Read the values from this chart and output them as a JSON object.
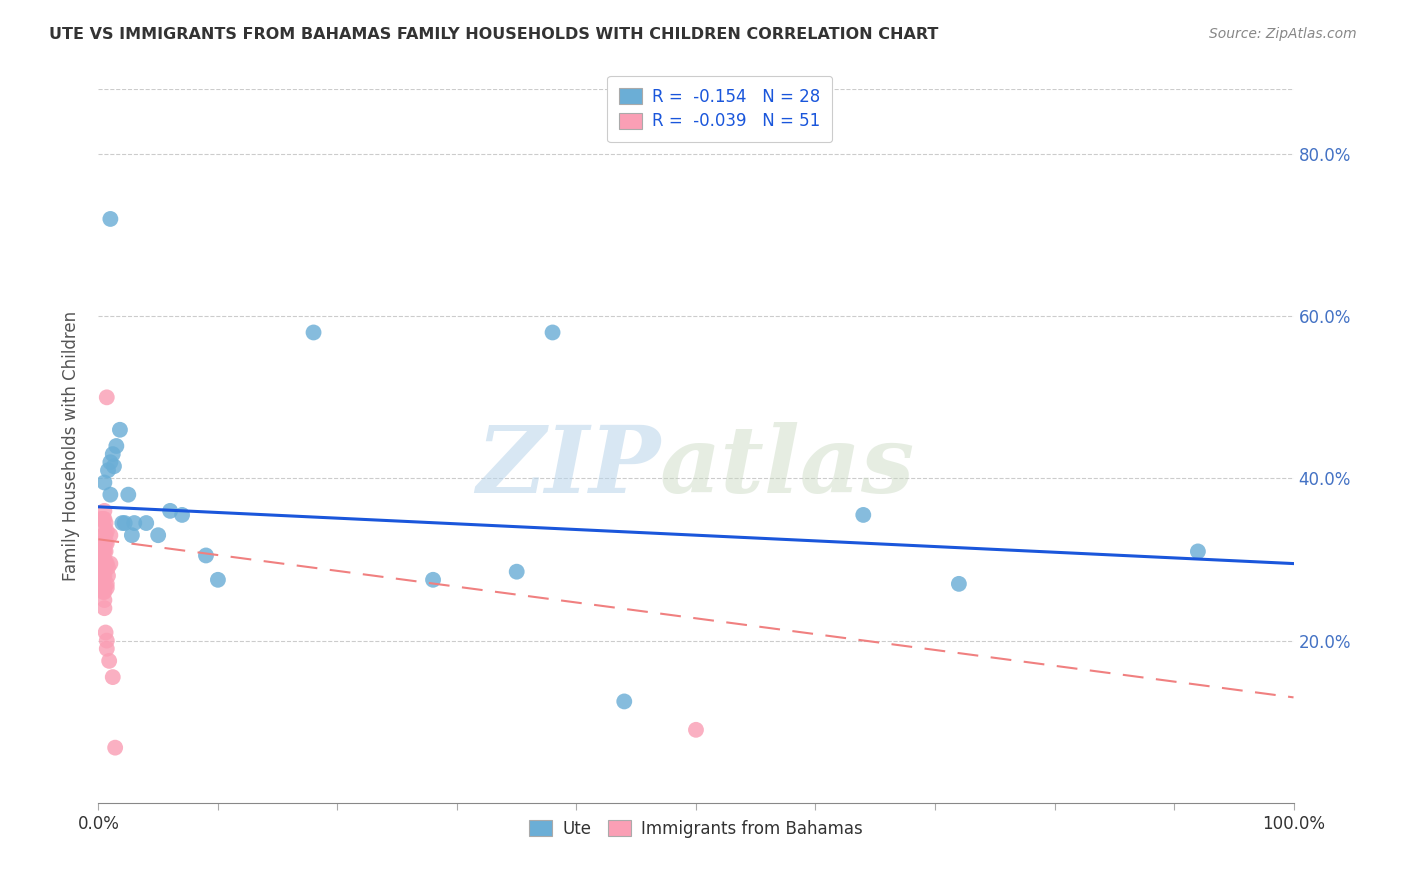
{
  "title": "UTE VS IMMIGRANTS FROM BAHAMAS FAMILY HOUSEHOLDS WITH CHILDREN CORRELATION CHART",
  "source": "Source: ZipAtlas.com",
  "ylabel": "Family Households with Children",
  "legend_label_blue": "Ute",
  "legend_label_pink": "Immigrants from Bahamas",
  "R_blue": -0.154,
  "N_blue": 28,
  "R_pink": -0.039,
  "N_pink": 51,
  "xlim": [
    0.0,
    1.0
  ],
  "ylim": [
    0.0,
    0.88
  ],
  "xtick_vals": [
    0.0,
    0.1,
    0.2,
    0.3,
    0.4,
    0.5,
    0.6,
    0.7,
    0.8,
    0.9,
    1.0
  ],
  "ytick_vals": [
    0.0,
    0.2,
    0.4,
    0.6,
    0.8
  ],
  "ytick_labels": [
    "",
    "20.0%",
    "40.0%",
    "60.0%",
    "80.0%"
  ],
  "blue_color": "#6baed6",
  "pink_color": "#fa9fb5",
  "line_blue_color": "#1a56db",
  "line_pink_color": "#f08080",
  "watermark_zip": "ZIP",
  "watermark_atlas": "atlas",
  "blue_regression": [
    0.0,
    1.0,
    0.365,
    0.295
  ],
  "pink_regression": [
    0.0,
    1.0,
    0.325,
    0.13
  ],
  "blue_dots": [
    [
      0.01,
      0.72
    ],
    [
      0.005,
      0.395
    ],
    [
      0.01,
      0.42
    ],
    [
      0.012,
      0.43
    ],
    [
      0.015,
      0.44
    ],
    [
      0.013,
      0.415
    ],
    [
      0.008,
      0.41
    ],
    [
      0.01,
      0.38
    ],
    [
      0.018,
      0.46
    ],
    [
      0.02,
      0.345
    ],
    [
      0.022,
      0.345
    ],
    [
      0.025,
      0.38
    ],
    [
      0.03,
      0.345
    ],
    [
      0.028,
      0.33
    ],
    [
      0.04,
      0.345
    ],
    [
      0.05,
      0.33
    ],
    [
      0.06,
      0.36
    ],
    [
      0.07,
      0.355
    ],
    [
      0.09,
      0.305
    ],
    [
      0.1,
      0.275
    ],
    [
      0.18,
      0.58
    ],
    [
      0.28,
      0.275
    ],
    [
      0.35,
      0.285
    ],
    [
      0.38,
      0.58
    ],
    [
      0.44,
      0.125
    ],
    [
      0.64,
      0.355
    ],
    [
      0.72,
      0.27
    ],
    [
      0.92,
      0.31
    ]
  ],
  "pink_dots": [
    [
      0.002,
      0.35
    ],
    [
      0.003,
      0.32
    ],
    [
      0.003,
      0.3
    ],
    [
      0.003,
      0.295
    ],
    [
      0.003,
      0.28
    ],
    [
      0.003,
      0.27
    ],
    [
      0.004,
      0.35
    ],
    [
      0.004,
      0.33
    ],
    [
      0.004,
      0.32
    ],
    [
      0.004,
      0.31
    ],
    [
      0.004,
      0.3
    ],
    [
      0.004,
      0.29
    ],
    [
      0.004,
      0.28
    ],
    [
      0.004,
      0.275
    ],
    [
      0.004,
      0.27
    ],
    [
      0.004,
      0.265
    ],
    [
      0.004,
      0.26
    ],
    [
      0.005,
      0.36
    ],
    [
      0.005,
      0.35
    ],
    [
      0.005,
      0.34
    ],
    [
      0.005,
      0.32
    ],
    [
      0.005,
      0.31
    ],
    [
      0.005,
      0.3
    ],
    [
      0.005,
      0.29
    ],
    [
      0.005,
      0.28
    ],
    [
      0.005,
      0.265
    ],
    [
      0.005,
      0.26
    ],
    [
      0.005,
      0.25
    ],
    [
      0.005,
      0.24
    ],
    [
      0.006,
      0.345
    ],
    [
      0.006,
      0.33
    ],
    [
      0.006,
      0.32
    ],
    [
      0.006,
      0.31
    ],
    [
      0.006,
      0.295
    ],
    [
      0.006,
      0.21
    ],
    [
      0.007,
      0.5
    ],
    [
      0.007,
      0.335
    ],
    [
      0.007,
      0.32
    ],
    [
      0.007,
      0.295
    ],
    [
      0.007,
      0.27
    ],
    [
      0.007,
      0.265
    ],
    [
      0.007,
      0.2
    ],
    [
      0.007,
      0.19
    ],
    [
      0.008,
      0.29
    ],
    [
      0.008,
      0.28
    ],
    [
      0.009,
      0.175
    ],
    [
      0.01,
      0.33
    ],
    [
      0.01,
      0.295
    ],
    [
      0.012,
      0.155
    ],
    [
      0.014,
      0.068
    ],
    [
      0.5,
      0.09
    ]
  ]
}
